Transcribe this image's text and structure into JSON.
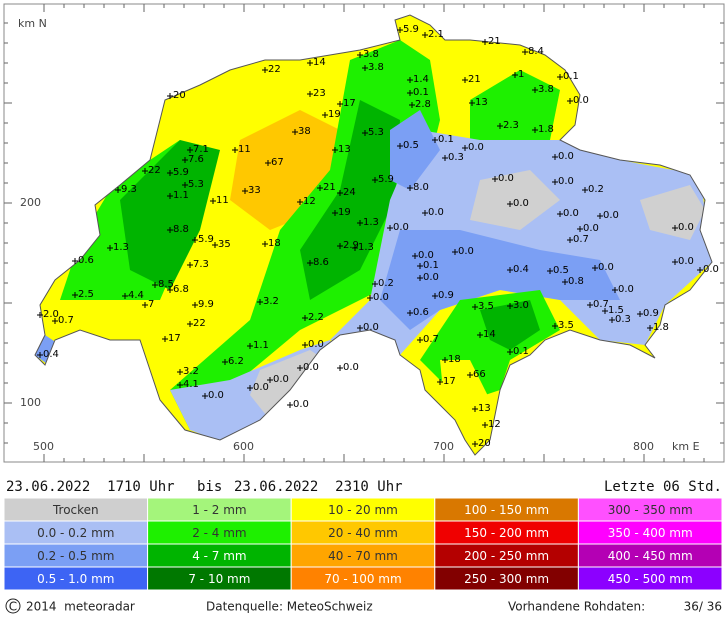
{
  "map": {
    "north_label": "km N",
    "east_label": "km E",
    "north_ticks": [
      "200",
      "100"
    ],
    "east_ticks": [
      "500",
      "600",
      "700",
      "800"
    ],
    "stations": [
      "5.9",
      "2.1",
      "21",
      "8.4",
      "3.8",
      "3.8",
      "14",
      "22",
      "1",
      "0.1",
      "20",
      "1.4",
      "21",
      "0.1",
      "3.8",
      "0.0",
      "2.8",
      "13",
      "23",
      "17",
      "19",
      "38",
      "5.3",
      "2.3",
      "1.8",
      "7.1",
      "0.5",
      "0.1",
      "0.3",
      "0.0",
      "11",
      "13",
      "7.6",
      "67",
      "0.0",
      "22",
      "5.9",
      "5.9",
      "0.0",
      "0.0",
      "9.3",
      "5.3",
      "33",
      "21",
      "24",
      "8.0",
      "0.2",
      "1.1",
      "11",
      "12",
      "0.0",
      "19",
      "0.0",
      "0.0",
      "0.0",
      "1.3",
      "0.0",
      "8.8",
      "0.0",
      "0.0",
      "5.9",
      "35",
      "18",
      "2.9",
      "1.3",
      "1.3",
      "0.7",
      "0.0",
      "0.0",
      "0.6",
      "8.6",
      "7.3",
      "0.0",
      "0.0",
      "0.0",
      "0.1",
      "0.4",
      "0.5",
      "0.0",
      "0.8",
      "0.2",
      "8.5",
      "6.8",
      "4.4",
      "2.5",
      "0.9",
      "0.0",
      "0.0",
      "9.9",
      "7",
      "3.2",
      "3.5",
      "3.0",
      "0.7",
      "1.5",
      "0.9",
      "0.3",
      "2.0",
      "0.7",
      "22",
      "0.6",
      "2.2",
      "0.0",
      "1.8",
      "3.5",
      "17",
      "14",
      "0.7",
      "1.1",
      "0.0",
      "0.1",
      "0.4",
      "18",
      "6.2",
      "3.2",
      "0.0",
      "0.0",
      "66",
      "0.0",
      "17",
      "4.1",
      "0.0",
      "0.0",
      "0.0",
      "13",
      "12",
      "20"
    ]
  },
  "header": {
    "from": "23.06.2022  1710 Uhr",
    "bis": "bis",
    "to": "23.06.2022  2310 Uhr",
    "last": "Letzte 06 Std."
  },
  "legend": {
    "columns": [
      [
        {
          "label": "Trocken",
          "color": "#cfcfcf"
        },
        {
          "label": "0.0 - 0.2 mm",
          "color": "#aabff4"
        },
        {
          "label": "0.2 - 0.5 mm",
          "color": "#7b9ff4"
        },
        {
          "label": "0.5 - 1.0 mm",
          "color": "#3d64f4"
        }
      ],
      [
        {
          "label": "1 - 2 mm",
          "color": "#a4f57b"
        },
        {
          "label": "2 - 4 mm",
          "color": "#1ef000"
        },
        {
          "label": "4 - 7 mm",
          "color": "#00b400"
        },
        {
          "label": "7 - 10 mm",
          "color": "#007800"
        }
      ],
      [
        {
          "label": "10 - 20 mm",
          "color": "#ffff00"
        },
        {
          "label": "20 - 40 mm",
          "color": "#ffc800"
        },
        {
          "label": "40 - 70 mm",
          "color": "#ffa500"
        },
        {
          "label": "70 - 100 mm",
          "color": "#ff8200"
        }
      ],
      [
        {
          "label": "100 - 150 mm",
          "color": "#d97800"
        },
        {
          "label": "150 - 200 mm",
          "color": "#f00000"
        },
        {
          "label": "200 - 250 mm",
          "color": "#b40000"
        },
        {
          "label": "250 - 300 mm",
          "color": "#820000"
        }
      ],
      [
        {
          "label": "300 - 350 mm",
          "color": "#ff50ff"
        },
        {
          "label": "350 - 400 mm",
          "color": "#ff00ff"
        },
        {
          "label": "400 - 450 mm",
          "color": "#b400b4"
        },
        {
          "label": "450 - 500 mm",
          "color": "#8c00ff"
        }
      ]
    ]
  },
  "footer": {
    "copyright_symbol": "C",
    "copyright": "2014  meteoradar",
    "source": "Datenquelle: MeteoSchweiz",
    "raw_label": "Vorhandene Rohdaten:",
    "raw_value": "36/ 36"
  }
}
